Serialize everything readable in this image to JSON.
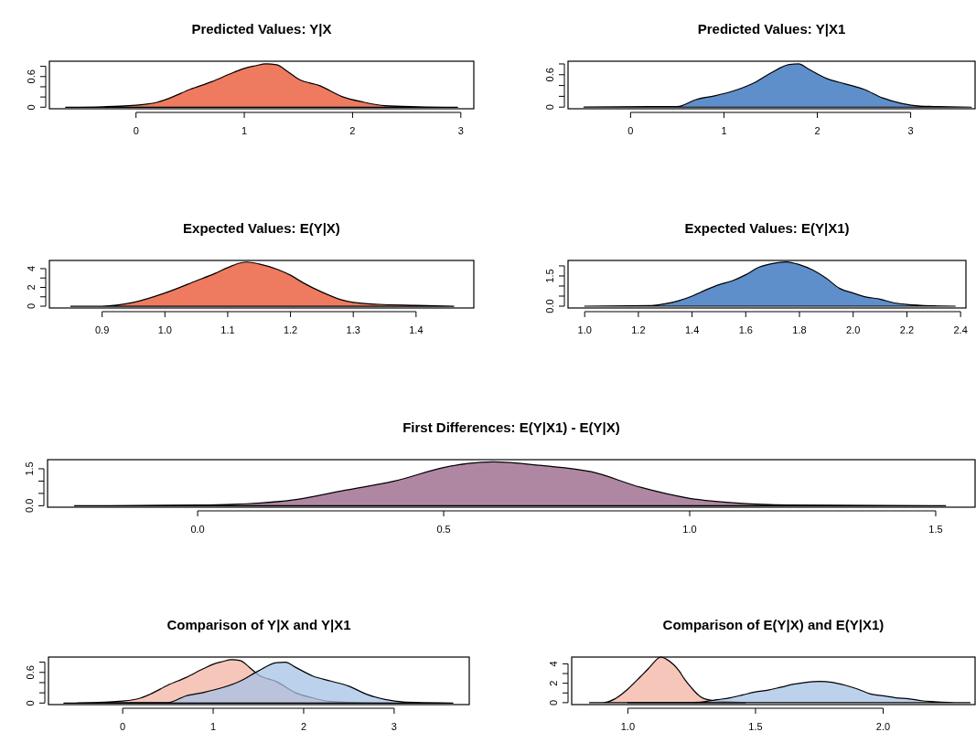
{
  "chart_data": [
    {
      "type": "area",
      "title": "Predicted Values: Y|X",
      "x": [
        -0.65,
        -0.3,
        -0.15,
        0.0,
        0.1,
        0.2,
        0.3,
        0.5,
        0.7,
        0.9,
        1.0,
        1.1,
        1.2,
        1.3,
        1.4,
        1.5,
        1.7,
        1.9,
        2.1,
        2.3,
        2.6,
        2.97
      ],
      "xlim": [
        -0.8,
        3.12
      ],
      "xticks": [
        0,
        1,
        2,
        3
      ],
      "ylim": [
        -0.03,
        0.9
      ],
      "yticks": [
        0.0,
        {
          "value": 0.2,
          "label": null
        },
        {
          "value": 0.4,
          "label": null
        },
        {
          "value": 0.6,
          "label": "0.6"
        },
        {
          "value": 0.8,
          "label": null
        }
      ],
      "series": [
        {
          "color": "#ee7b60",
          "values": [
            0,
            0.01,
            0.02,
            0.04,
            0.06,
            0.1,
            0.17,
            0.35,
            0.5,
            0.68,
            0.76,
            0.81,
            0.85,
            0.83,
            0.7,
            0.55,
            0.42,
            0.21,
            0.1,
            0.03,
            0.01,
            0
          ]
        }
      ]
    },
    {
      "type": "area",
      "title": "Predicted Values: Y|X1",
      "x": [
        -0.5,
        0.2,
        0.5,
        0.7,
        0.9,
        1.1,
        1.3,
        1.5,
        1.7,
        1.8,
        1.9,
        2.1,
        2.3,
        2.5,
        2.7,
        2.9,
        3.1,
        3.3,
        3.65
      ],
      "xlim": [
        -0.67,
        3.69
      ],
      "xticks": [
        0,
        1,
        2,
        3
      ],
      "ylim": [
        -0.03,
        0.85
      ],
      "yticks": [
        0.0,
        {
          "value": 0.2,
          "label": null
        },
        {
          "value": 0.4,
          "label": null
        },
        {
          "value": 0.6,
          "label": "0.6"
        },
        {
          "value": 0.8,
          "label": null
        }
      ],
      "series": [
        {
          "color": "#5f8fca",
          "values": [
            0,
            0.01,
            0.01,
            0.14,
            0.21,
            0.3,
            0.43,
            0.63,
            0.79,
            0.8,
            0.71,
            0.53,
            0.43,
            0.33,
            0.17,
            0.07,
            0.02,
            0.01,
            0
          ]
        }
      ]
    },
    {
      "type": "area",
      "title": "Expected Values: E(Y|X)",
      "x": [
        0.85,
        0.9,
        0.95,
        1.0,
        1.05,
        1.08,
        1.1,
        1.12,
        1.13,
        1.15,
        1.18,
        1.2,
        1.22,
        1.25,
        1.28,
        1.3,
        1.34,
        1.4,
        1.46
      ],
      "xlim": [
        0.816,
        1.492
      ],
      "xticks": [
        {
          "value": 0.9,
          "label": "0.9"
        },
        {
          "value": 1.0,
          "label": "1.0"
        },
        {
          "value": 1.1,
          "label": "1.1"
        },
        {
          "value": 1.2,
          "label": "1.2"
        },
        {
          "value": 1.3,
          "label": "1.3"
        },
        {
          "value": 1.4,
          "label": "1.4"
        }
      ],
      "ylim": [
        -0.19,
        4.87
      ],
      "yticks": [
        0,
        {
          "value": 1,
          "label": null
        },
        2,
        {
          "value": 3,
          "label": null
        },
        4
      ],
      "series": [
        {
          "color": "#ee7b60",
          "values": [
            0,
            0,
            0.4,
            1.4,
            2.7,
            3.5,
            4.1,
            4.6,
            4.7,
            4.5,
            3.9,
            3.3,
            2.5,
            1.5,
            0.7,
            0.4,
            0.2,
            0.1,
            0
          ]
        }
      ]
    },
    {
      "type": "area",
      "title": "Expected Values: E(Y|X1)",
      "x": [
        1.0,
        1.25,
        1.3,
        1.35,
        1.4,
        1.45,
        1.5,
        1.55,
        1.6,
        1.65,
        1.7,
        1.75,
        1.8,
        1.85,
        1.9,
        1.95,
        2.0,
        2.05,
        2.1,
        2.15,
        2.2,
        2.3,
        2.38
      ],
      "xlim": [
        0.938,
        2.42
      ],
      "xticks": [
        {
          "value": 1.0,
          "label": "1.0"
        },
        {
          "value": 1.2,
          "label": "1.2"
        },
        {
          "value": 1.4,
          "label": "1.4"
        },
        {
          "value": 1.6,
          "label": "1.6"
        },
        {
          "value": 1.8,
          "label": "1.8"
        },
        {
          "value": 2.0,
          "label": "2.0"
        },
        {
          "value": 2.2,
          "label": "2.2"
        },
        {
          "value": 2.4,
          "label": "2.4"
        }
      ],
      "ylim": [
        -0.09,
        2.27
      ],
      "yticks": [
        {
          "value": 0,
          "label": "0.0"
        },
        {
          "value": 0.5,
          "label": null
        },
        {
          "value": 1.0,
          "label": null
        },
        {
          "value": 1.5,
          "label": "1.5"
        },
        {
          "value": 2.0,
          "label": null
        }
      ],
      "series": [
        {
          "color": "#5f8fca",
          "values": [
            0,
            0.03,
            0.12,
            0.27,
            0.5,
            0.8,
            1.06,
            1.26,
            1.56,
            1.94,
            2.12,
            2.2,
            2.06,
            1.79,
            1.38,
            0.88,
            0.65,
            0.45,
            0.35,
            0.17,
            0.09,
            0.02,
            0
          ]
        }
      ]
    },
    {
      "type": "area",
      "title": "First Differences: E(Y|X1) - E(Y|X)",
      "x": [
        -0.25,
        0.0,
        0.1,
        0.2,
        0.3,
        0.4,
        0.5,
        0.55,
        0.6,
        0.7,
        0.8,
        0.9,
        1.0,
        1.1,
        1.2,
        1.52
      ],
      "xlim": [
        -0.305,
        1.58
      ],
      "xticks": [
        {
          "value": 0,
          "label": "0.0"
        },
        0.5,
        {
          "value": 1,
          "label": "1.0"
        },
        1.5
      ],
      "ylim": [
        -0.06,
        1.87
      ],
      "yticks": [
        {
          "value": 0,
          "label": "0.0"
        },
        {
          "value": 0.5,
          "label": null
        },
        {
          "value": 1.0,
          "label": null
        },
        1.5
      ],
      "series": [
        {
          "color": "#b087a3",
          "values": [
            0,
            0.03,
            0.08,
            0.25,
            0.63,
            1.0,
            1.55,
            1.72,
            1.78,
            1.63,
            1.38,
            0.75,
            0.3,
            0.1,
            0.03,
            0
          ]
        }
      ]
    },
    {
      "type": "area",
      "title": "Comparison of Y|X and Y|X1",
      "xlim": [
        -0.82,
        3.83
      ],
      "xticks": [
        0,
        1,
        2,
        3
      ],
      "ylim": [
        -0.03,
        0.9
      ],
      "yticks": [
        0.0,
        {
          "value": 0.2,
          "label": null
        },
        {
          "value": 0.4,
          "label": null
        },
        {
          "value": 0.6,
          "label": "0.6"
        },
        {
          "value": 0.8,
          "label": null
        }
      ],
      "series": [
        {
          "color": "#f3b3a3",
          "x": [
            -0.65,
            -0.3,
            -0.15,
            0.0,
            0.1,
            0.2,
            0.3,
            0.5,
            0.7,
            0.9,
            1.0,
            1.1,
            1.2,
            1.3,
            1.4,
            1.5,
            1.7,
            1.9,
            2.1,
            2.3,
            2.6,
            2.97
          ],
          "values": [
            0,
            0.01,
            0.02,
            0.04,
            0.06,
            0.1,
            0.17,
            0.35,
            0.5,
            0.68,
            0.76,
            0.81,
            0.85,
            0.83,
            0.7,
            0.55,
            0.42,
            0.21,
            0.1,
            0.03,
            0.01,
            0
          ]
        },
        {
          "color": "#a6c1e6",
          "x": [
            -0.5,
            0.2,
            0.5,
            0.7,
            0.9,
            1.1,
            1.3,
            1.5,
            1.7,
            1.8,
            1.9,
            2.1,
            2.3,
            2.5,
            2.7,
            2.9,
            3.1,
            3.3,
            3.65
          ],
          "values": [
            0,
            0.01,
            0.01,
            0.14,
            0.21,
            0.3,
            0.43,
            0.63,
            0.79,
            0.8,
            0.71,
            0.53,
            0.43,
            0.33,
            0.17,
            0.07,
            0.02,
            0.01,
            0
          ]
        }
      ]
    },
    {
      "type": "area",
      "title": "Comparison of E(Y|X) and E(Y|X1)",
      "xlim": [
        0.78,
        2.36
      ],
      "xticks": [
        {
          "value": 1.0,
          "label": "1.0"
        },
        1.5,
        {
          "value": 2.0,
          "label": "2.0"
        }
      ],
      "ylim": [
        -0.2,
        4.7
      ],
      "yticks": [
        0,
        {
          "value": 1,
          "label": null
        },
        2,
        {
          "value": 3,
          "label": null
        },
        4
      ],
      "series": [
        {
          "color": "#f3b3a3",
          "x": [
            0.85,
            0.9,
            0.95,
            1.0,
            1.05,
            1.08,
            1.1,
            1.12,
            1.13,
            1.15,
            1.18,
            1.2,
            1.22,
            1.25,
            1.28,
            1.3,
            1.34,
            1.4,
            1.46
          ],
          "values": [
            0,
            0,
            0.4,
            1.4,
            2.7,
            3.5,
            4.1,
            4.6,
            4.7,
            4.5,
            3.9,
            3.3,
            2.5,
            1.5,
            0.7,
            0.4,
            0.2,
            0.1,
            0
          ]
        },
        {
          "color": "#a6c1e6",
          "x": [
            1.0,
            1.25,
            1.3,
            1.35,
            1.4,
            1.45,
            1.5,
            1.55,
            1.6,
            1.65,
            1.7,
            1.75,
            1.8,
            1.85,
            1.9,
            1.95,
            2.0,
            2.05,
            2.1,
            2.15,
            2.2,
            2.3,
            2.34
          ],
          "values": [
            0,
            0,
            0.1,
            0.3,
            0.5,
            0.8,
            1.1,
            1.3,
            1.6,
            1.9,
            2.1,
            2.2,
            2.1,
            1.8,
            1.4,
            0.9,
            0.7,
            0.5,
            0.4,
            0.2,
            0.1,
            0,
            0
          ]
        }
      ]
    }
  ]
}
